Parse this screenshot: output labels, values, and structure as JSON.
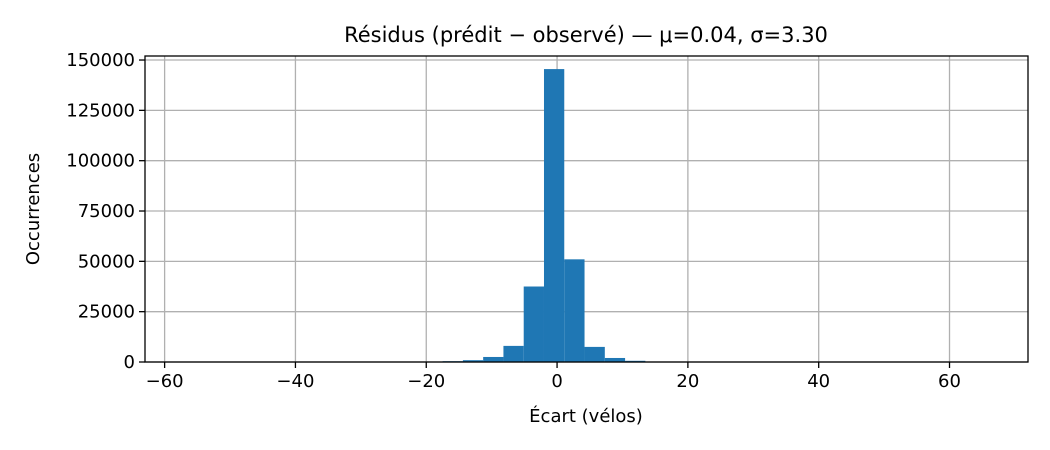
{
  "chart_data": {
    "type": "bar",
    "title": "Résidus (prédit − observé) — μ=0.04, σ=3.30",
    "xlabel": "Écart (vélos)",
    "ylabel": "Occurrences",
    "xlim": [
      -63,
      72
    ],
    "ylim": [
      0,
      152000
    ],
    "x_ticks": [
      -60,
      -40,
      -20,
      0,
      20,
      40,
      60
    ],
    "x_tick_labels": [
      "−60",
      "−40",
      "−20",
      "0",
      "20",
      "40",
      "60"
    ],
    "y_ticks": [
      0,
      25000,
      50000,
      75000,
      100000,
      125000,
      150000
    ],
    "y_tick_labels": [
      "0",
      "25000",
      "50000",
      "75000",
      "100000",
      "125000",
      "150000"
    ],
    "grid": true,
    "bar_color": "#1f77b4",
    "bins": [
      {
        "x0": -17.5,
        "x1": -14.4,
        "value": 400
      },
      {
        "x0": -14.4,
        "x1": -11.3,
        "value": 900
      },
      {
        "x0": -11.3,
        "x1": -8.2,
        "value": 2500
      },
      {
        "x0": -8.2,
        "x1": -5.1,
        "value": 8000
      },
      {
        "x0": -5.1,
        "x1": -2.0,
        "value": 37500
      },
      {
        "x0": -2.0,
        "x1": 1.1,
        "value": 145500
      },
      {
        "x0": 1.1,
        "x1": 4.2,
        "value": 51000
      },
      {
        "x0": 4.2,
        "x1": 7.3,
        "value": 7500
      },
      {
        "x0": 7.3,
        "x1": 10.4,
        "value": 2000
      },
      {
        "x0": 10.4,
        "x1": 13.5,
        "value": 600
      },
      {
        "x0": 13.5,
        "x1": 16.6,
        "value": 150
      }
    ]
  }
}
